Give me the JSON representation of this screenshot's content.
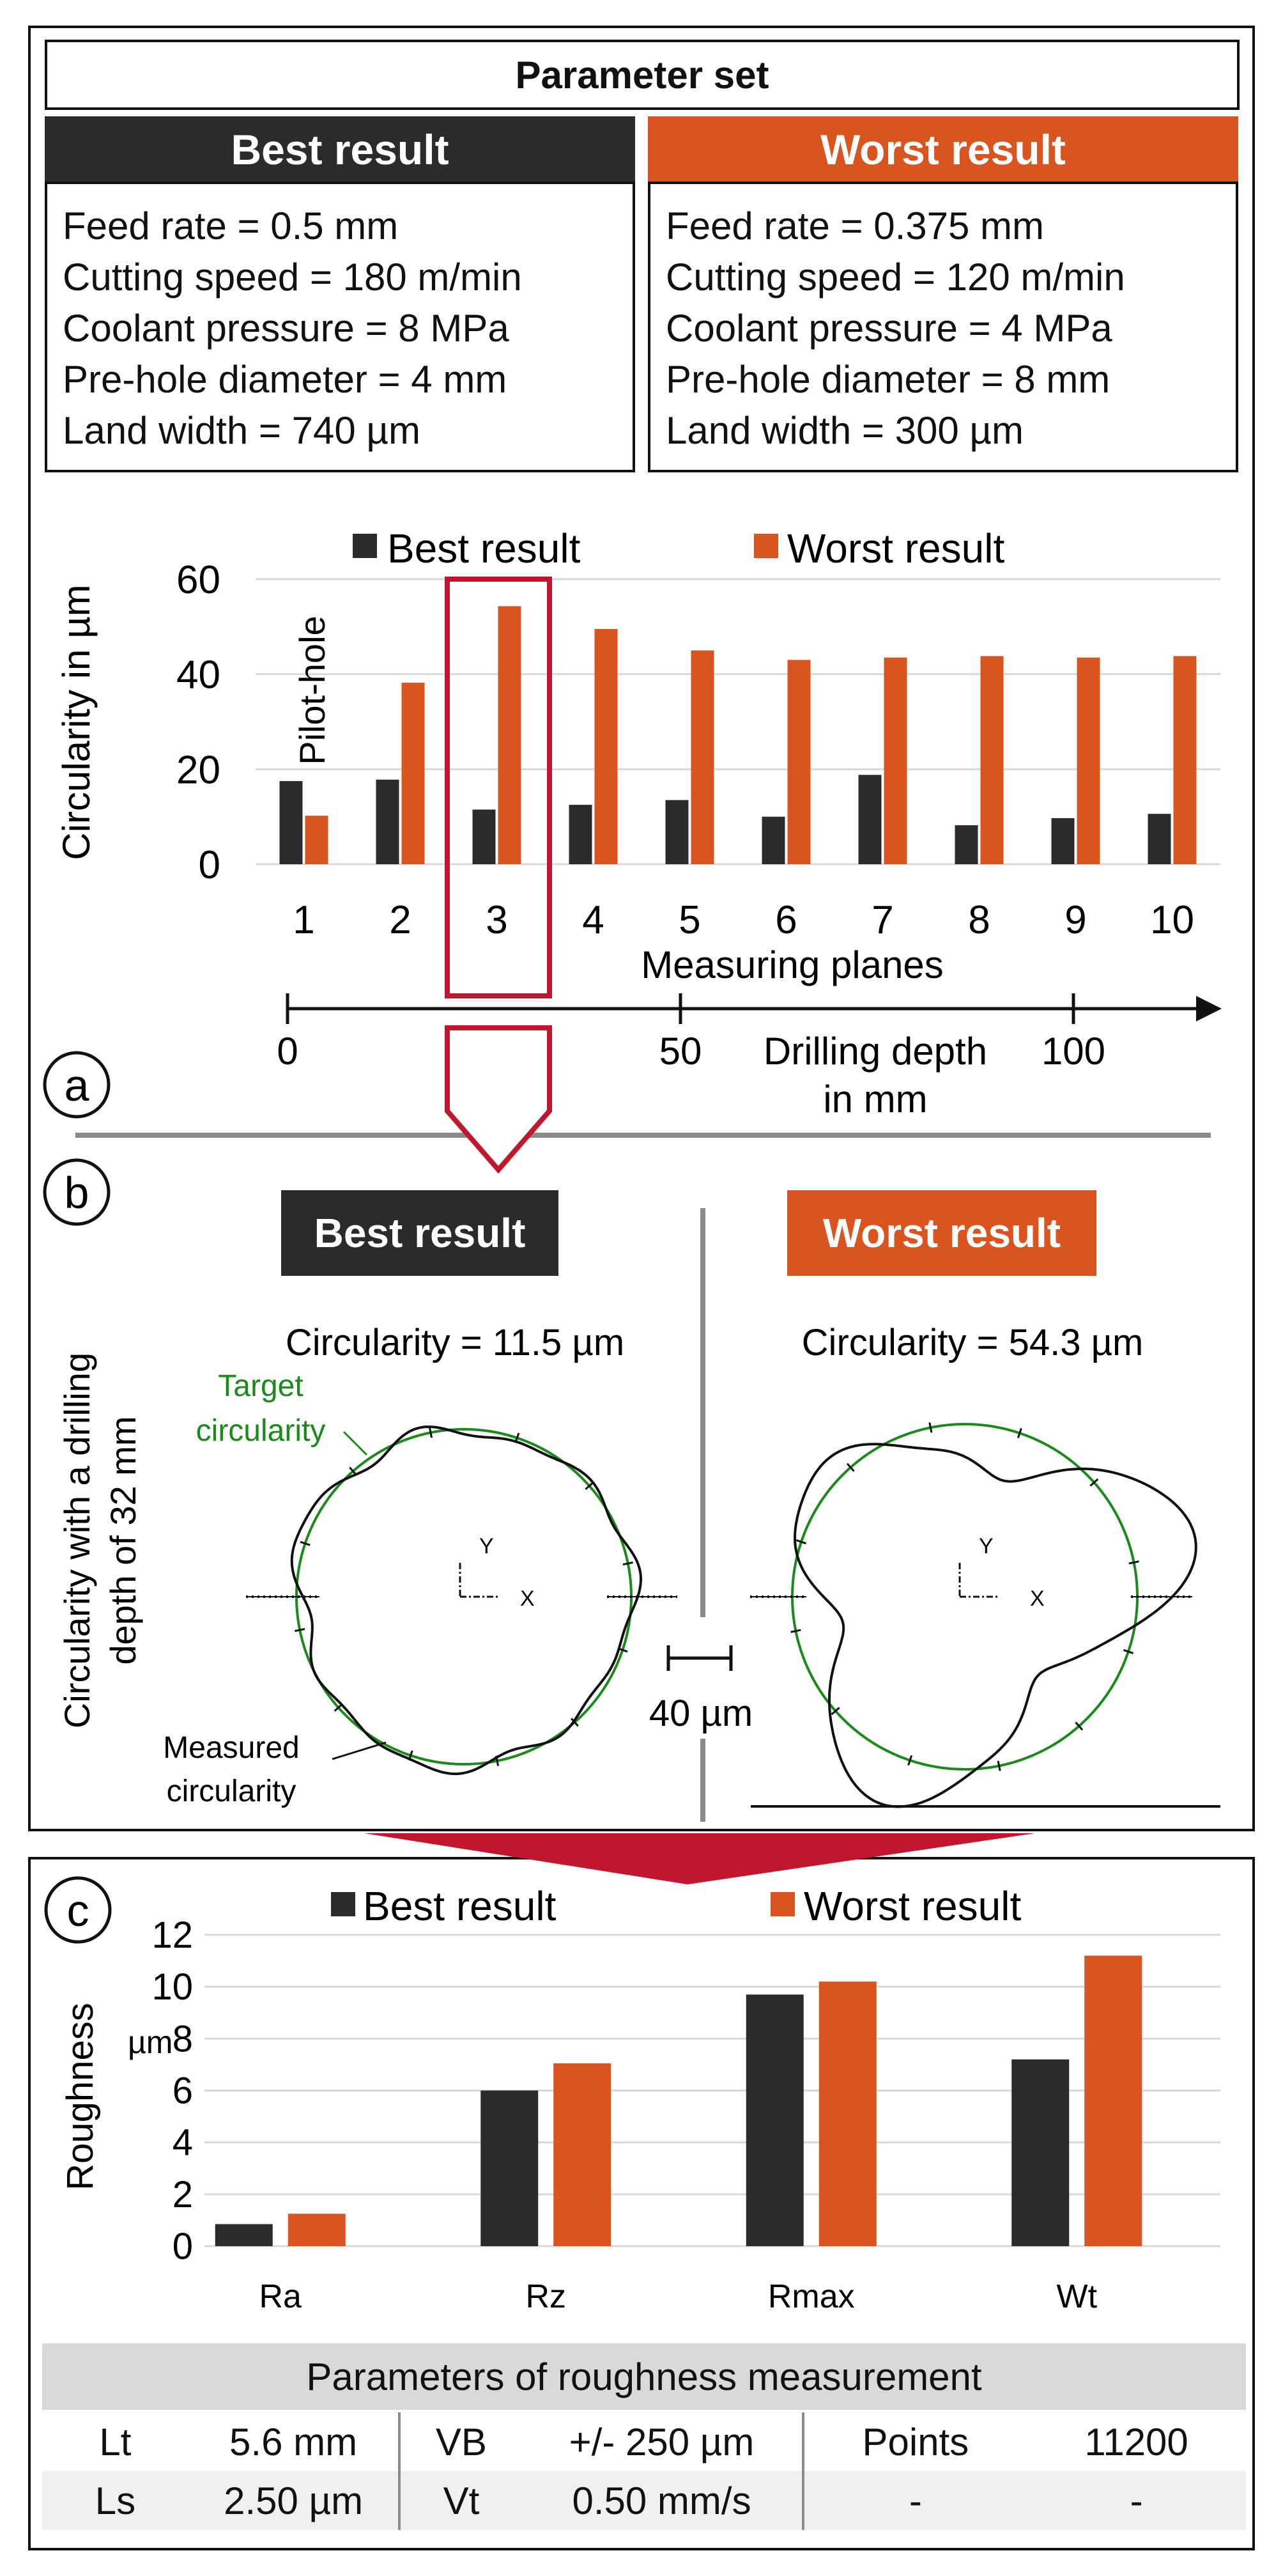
{
  "colors": {
    "best": "#2b2b2b",
    "worst": "#d9541e",
    "frame": "#111111",
    "accent_red": "#c0172e",
    "target": "#1a8a1a",
    "grid": "#d9d9d9",
    "table_header": "#d9d9d9",
    "table_row_alt": "#f0f0f0"
  },
  "header": {
    "title": "Parameter set"
  },
  "best": {
    "title": "Best result",
    "params": [
      "Feed rate = 0.5 mm",
      "Cutting speed = 180 m/min",
      "Coolant pressure = 8 MPa",
      "Pre-hole diameter = 4 mm",
      "Land width = 740 µm"
    ]
  },
  "worst": {
    "title": "Worst result",
    "params": [
      "Feed rate = 0.375 mm",
      "Cutting speed = 120 m/min",
      "Coolant pressure = 4 MPa",
      "Pre-hole diameter = 8 mm",
      "Land width = 300 µm"
    ]
  },
  "panel_a": {
    "letter": "a",
    "pilot_label": "Pilot-hole",
    "depth_axis": {
      "label_line1": "Drilling depth",
      "label_line2": "in mm",
      "ticks": [
        "0",
        "50",
        "100"
      ],
      "tick_values": [
        0,
        50,
        100
      ]
    }
  },
  "panel_b": {
    "letter": "b",
    "best_title": "Best result",
    "worst_title": "Worst result",
    "best_circularity": "Circularity = 11.5 µm",
    "worst_circularity": "Circularity = 54.3 µm",
    "ylabel_line1": "Circularity with a drilling",
    "ylabel_line2": "depth of 32 mm",
    "target_label_line1": "Target",
    "target_label_line2": "circularity",
    "measured_label_line1": "Measured",
    "measured_label_line2": "circularity",
    "scale_label": "40 µm",
    "axis_y": "Y",
    "axis_x": "X"
  },
  "panel_c": {
    "letter": "c"
  },
  "chart_data": [
    {
      "type": "bar",
      "title": "",
      "xlabel": "Measuring planes",
      "ylabel": "Circularity in µm",
      "categories": [
        "1",
        "2",
        "3",
        "4",
        "5",
        "6",
        "7",
        "8",
        "9",
        "10"
      ],
      "ylim": [
        0,
        60
      ],
      "yticks": [
        "0",
        "20",
        "40",
        "60"
      ],
      "ytick_values": [
        0,
        20,
        40,
        60
      ],
      "highlight_category": "3",
      "legend": "top",
      "series": [
        {
          "name": "Best result",
          "values": [
            17.5,
            17.8,
            11.5,
            12.5,
            13.5,
            10.0,
            18.8,
            8.2,
            9.7,
            10.6
          ]
        },
        {
          "name": "Worst result",
          "values": [
            10.2,
            38.2,
            54.3,
            49.5,
            45.0,
            43.0,
            43.5,
            43.8,
            43.5,
            43.8
          ]
        }
      ]
    },
    {
      "type": "bar",
      "title": "",
      "xlabel": "",
      "ylabel": "Roughness",
      "yunit": "µm",
      "categories": [
        "Ra",
        "Rz",
        "Rmax",
        "Wt"
      ],
      "ylim": [
        0,
        12
      ],
      "yticks": [
        "0",
        "2",
        "4",
        "6",
        "8",
        "10",
        "12"
      ],
      "ytick_values": [
        0,
        2,
        4,
        6,
        8,
        10,
        12
      ],
      "legend": "top",
      "series": [
        {
          "name": "Best result",
          "values": [
            0.85,
            6.0,
            9.7,
            7.2
          ]
        },
        {
          "name": "Worst result",
          "values": [
            1.25,
            7.05,
            10.2,
            11.2
          ]
        }
      ]
    }
  ],
  "roughness_table": {
    "title": "Parameters of roughness measurement",
    "rows": [
      [
        "Lt",
        "5.6 mm",
        "VB",
        "+/- 250 µm",
        "Points",
        "11200"
      ],
      [
        "Ls",
        "2.50 µm",
        "Vt",
        "0.50 mm/s",
        "-",
        "-"
      ]
    ]
  }
}
